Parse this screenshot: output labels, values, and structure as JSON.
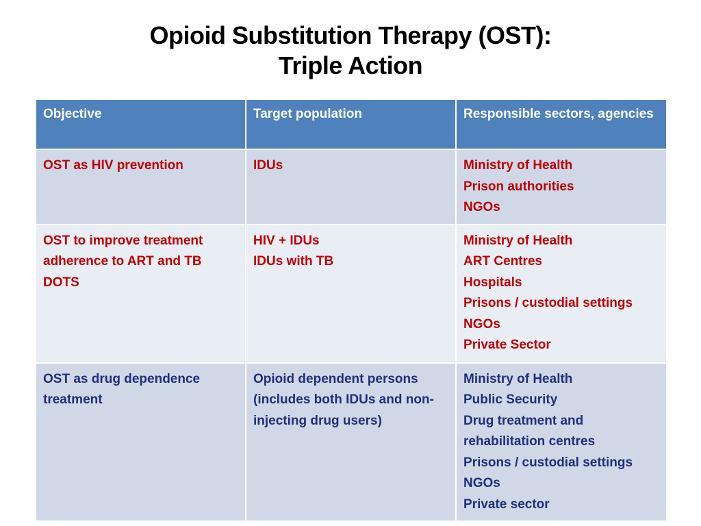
{
  "title": {
    "line1": "Opioid Substitution Therapy (OST):",
    "line2": "Triple Action"
  },
  "table": {
    "headers": [
      "Objective",
      "Target population",
      "Responsible sectors, agencies"
    ],
    "rows": [
      {
        "objective": [
          "OST as HIV prevention"
        ],
        "target": [
          "IDUs"
        ],
        "sectors": [
          "Ministry of Health",
          "Prison authorities",
          "NGOs"
        ],
        "text_color": "#c00000"
      },
      {
        "objective": [
          "OST to improve treatment adherence to ART and TB DOTS"
        ],
        "target": [
          "HIV + IDUs",
          "IDUs with TB"
        ],
        "sectors": [
          "Ministry of Health",
          "ART Centres",
          "Hospitals",
          "Prisons / custodial settings",
          "NGOs",
          "Private Sector"
        ],
        "text_color": "#c00000"
      },
      {
        "objective": [
          "OST as drug dependence treatment"
        ],
        "target": [
          "Opioid dependent persons (includes both IDUs and non-injecting drug users)"
        ],
        "sectors": [
          "Ministry of Health",
          "Public Security",
          "Drug treatment and rehabilitation centres",
          "Prisons / custodial settings",
          "NGOs",
          "Private sector"
        ],
        "text_color": "#1f2f7a"
      }
    ]
  },
  "colors": {
    "header_bg": "#4f81bd",
    "row_dark_bg": "#d0d8e8",
    "row_light_bg": "#e9edf4"
  }
}
